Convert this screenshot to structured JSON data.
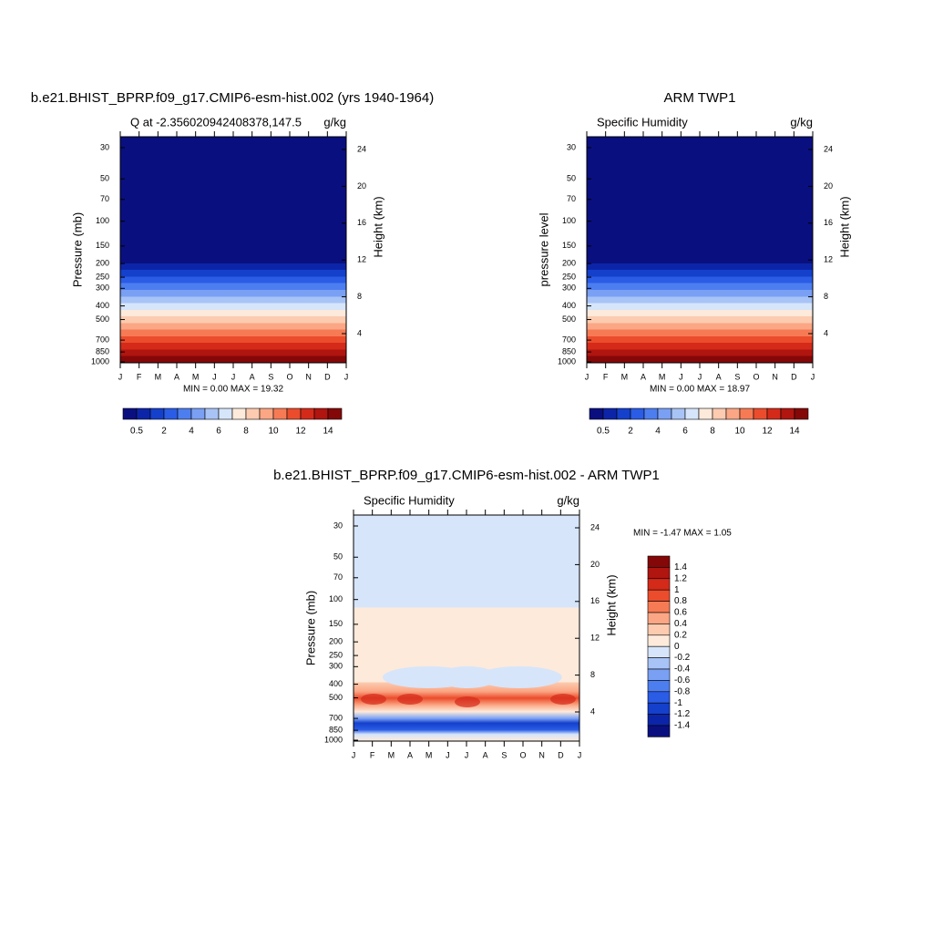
{
  "panels": [
    {
      "title": "b.e21.BHIST_BPRP.f09_g17.CMIP6-esm-hist.002 (yrs 1940-1964)",
      "left_label": "Q at -2.356020942408378,147.5",
      "right_label": "g/kg",
      "ylabel": "Pressure (mb)",
      "y2label": "Height (km)",
      "stats": "MIN =   0.00 MAX =  19.32"
    },
    {
      "title": "ARM TWP1",
      "left_label": "Specific Humidity",
      "right_label": "g/kg",
      "ylabel": "pressure level",
      "y2label": "Height (km)",
      "stats": "MIN =   0.00 MAX =  18.97"
    },
    {
      "title": "b.e21.BHIST_BPRP.f09_g17.CMIP6-esm-hist.002 - ARM TWP1",
      "left_label": "Specific Humidity",
      "right_label": "g/kg",
      "ylabel": "Pressure (mb)",
      "y2label": "Height (km)",
      "stats": "MIN =  -1.47 MAX =   1.05"
    }
  ],
  "months": [
    "J",
    "F",
    "M",
    "A",
    "M",
    "J",
    "J",
    "A",
    "S",
    "O",
    "N",
    "D",
    "J"
  ],
  "pressure_ticks": [
    30,
    50,
    70,
    100,
    150,
    200,
    250,
    300,
    400,
    500,
    700,
    850,
    1000
  ],
  "height_ticks": [
    4,
    8,
    12,
    16,
    20,
    24
  ],
  "colors": [
    "#0a0f80",
    "#0c25a8",
    "#1440cc",
    "#2a5ce6",
    "#4d7ef0",
    "#7aa0f4",
    "#a8c3f6",
    "#d6e5fa",
    "#fdeadb",
    "#fccbb0",
    "#fba684",
    "#f67b55",
    "#eb4c2c",
    "#d42a1a",
    "#b01510",
    "#840808"
  ],
  "colorbar_labels": [
    "0.5",
    "2",
    "4",
    "6",
    "8",
    "10",
    "12",
    "14"
  ],
  "diff_colorbar_labels": [
    "1.4",
    "1.2",
    "1",
    "0.8",
    "0.6",
    "0.4",
    "0.2",
    "0",
    "-0.2",
    "-0.4",
    "-0.6",
    "-0.8",
    "-1",
    "-1.2",
    "-1.4"
  ]
}
